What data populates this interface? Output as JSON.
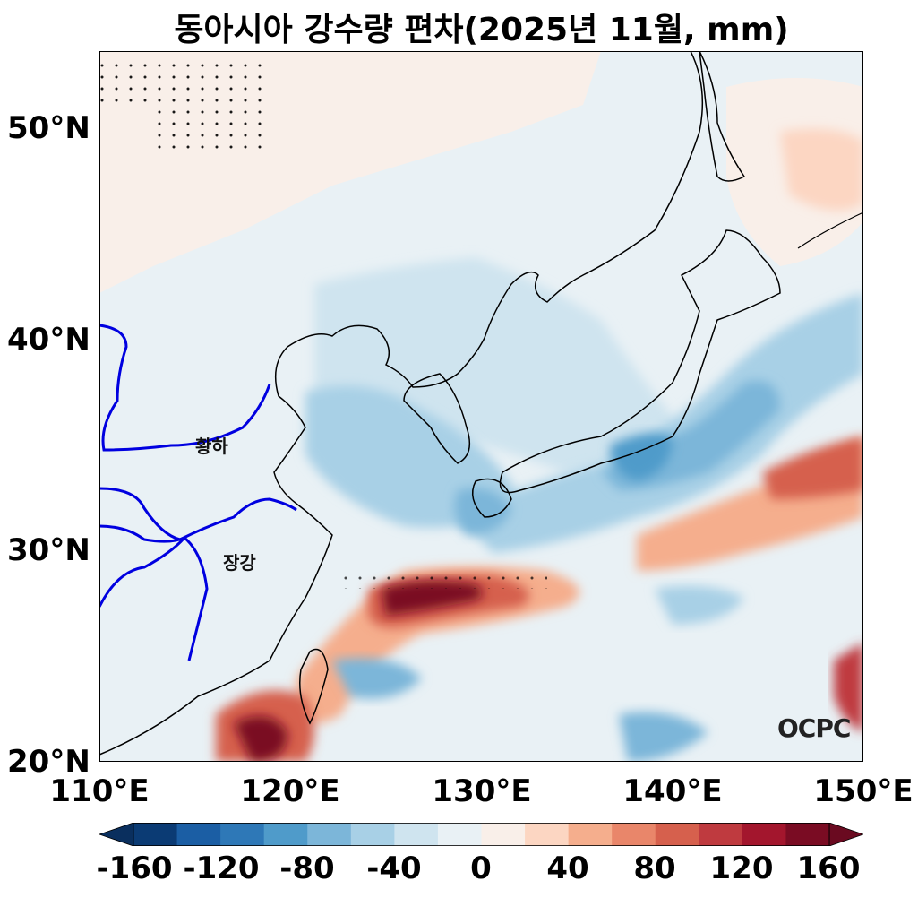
{
  "title": "동아시아 강수량 편차(2025년 11월, mm)",
  "logo": "OCPC",
  "river_labels": {
    "yellow": "황하",
    "yangtze": "장강"
  },
  "lat_ticks": [
    "50°N",
    "40°N",
    "30°N",
    "20°N"
  ],
  "lon_ticks": [
    "110°E",
    "120°E",
    "130°E",
    "140°E",
    "150°E"
  ],
  "extent": {
    "lon": [
      110,
      150
    ],
    "lat": [
      20,
      53.5
    ]
  },
  "colorbar": {
    "ticks": [
      "-160",
      "-120",
      "-80",
      "-40",
      "0",
      "40",
      "80",
      "120",
      "160"
    ],
    "levels": [
      -160,
      -140,
      -120,
      -100,
      -80,
      -60,
      -40,
      -20,
      0,
      20,
      40,
      60,
      80,
      100,
      120,
      140,
      160
    ],
    "colors": [
      "#0b3b74",
      "#1b5ea4",
      "#2e78b7",
      "#4f9bca",
      "#7cb6d9",
      "#a8d0e6",
      "#cfe4ef",
      "#e9f1f5",
      "#f9efe9",
      "#fcd6c2",
      "#f5ae8d",
      "#e9866a",
      "#d6604d",
      "#bf3a3f",
      "#a3162d",
      "#7a0c23"
    ],
    "under_color": "#0a2f5e",
    "over_color": "#6a0a20"
  },
  "colors": {
    "coast": "#000000",
    "river": "#0000e0",
    "background": "#e9f1f5"
  }
}
